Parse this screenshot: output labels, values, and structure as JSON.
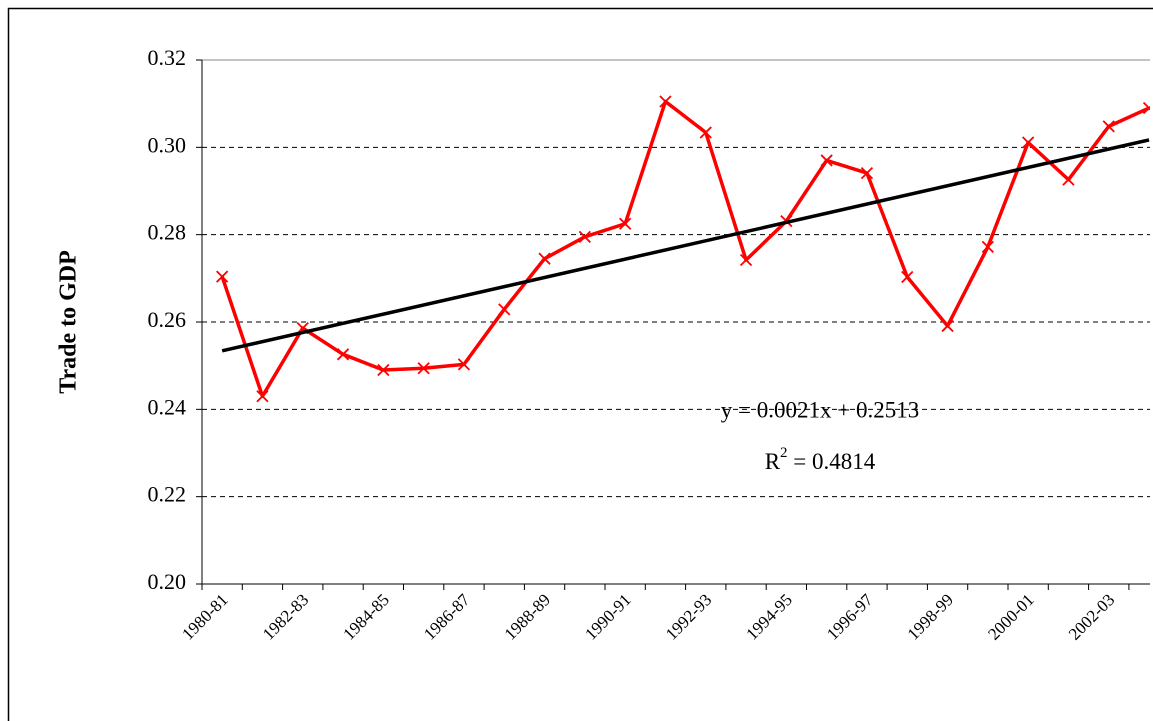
{
  "chart_data": {
    "type": "line",
    "y_label": "Trade to GDP",
    "categories": [
      "1980-81",
      null,
      "1982-83",
      null,
      "1984-85",
      null,
      "1986-87",
      null,
      "1988-89",
      null,
      "1990-91",
      null,
      "1992-93",
      null,
      "1994-95",
      null,
      "1996-97",
      null,
      "1998-99",
      null,
      "2000-01",
      null,
      "2002-03",
      null
    ],
    "series": [
      {
        "color": "#ff0000",
        "values": [
          0.2704,
          0.243,
          0.2586,
          0.2526,
          0.249,
          0.2494,
          0.2503,
          0.2629,
          0.2745,
          0.2795,
          0.2825,
          0.3105,
          0.3034,
          0.2742,
          0.2831,
          0.297,
          0.2941,
          0.2703,
          0.2591,
          0.2772,
          0.3011,
          0.2926,
          0.3048,
          0.309
        ]
      }
    ],
    "trendline": {
      "color": "#000000",
      "values": [
        0.2534,
        0.3017
      ]
    },
    "equation": "y = 0.0021x + 0.2513",
    "r_squared": {
      "symbol": "R",
      "power": "2",
      "rest": " = 0.4814"
    },
    "ylim": [
      0.2,
      0.32
    ],
    "yticks": [
      {
        "value": 0.2,
        "label": "0.20"
      },
      {
        "value": 0.22,
        "label": "0.22"
      },
      {
        "value": 0.24,
        "label": "0.24"
      },
      {
        "value": 0.26,
        "label": "0.26"
      },
      {
        "value": 0.28,
        "label": "0.28"
      },
      {
        "value": 0.3,
        "label": "0.30"
      },
      {
        "value": 0.32,
        "label": "0.32"
      }
    ],
    "grid": true
  }
}
